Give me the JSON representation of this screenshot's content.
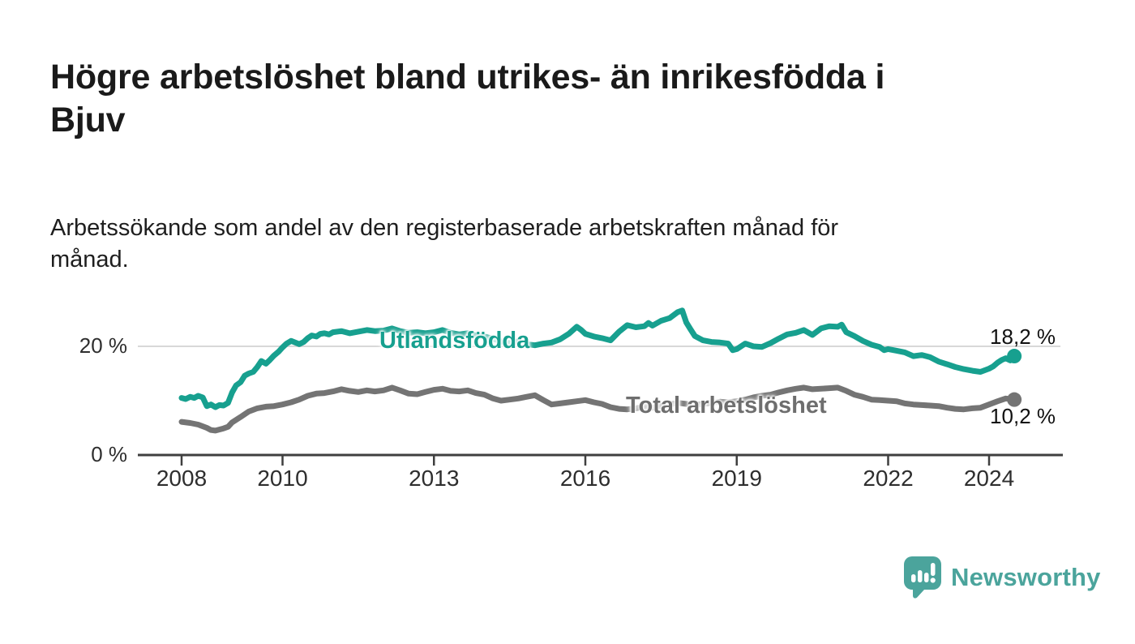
{
  "header": {
    "title": "Högre arbetslöshet bland utrikes- än inrikesfödda i\nBjuv",
    "subtitle": "Arbetssökande som andel av den registerbaserade arbetskraften månad för\nmånad."
  },
  "branding": {
    "name": "Newsworthy",
    "icon": "speech-bubble-bar-chart-icon",
    "color": "#4ba49c"
  },
  "chart_data": {
    "type": "line",
    "title": "Högre arbetslöshet bland utrikes- än inrikesfödda i Bjuv",
    "subtitle": "Arbetssökande som andel av den registerbaserade arbetskraften månad för månad.",
    "unit": "%",
    "grid": "horizontal-gridline-at-20-only",
    "legend_position": "labels-on-lines",
    "x_axis": {
      "range": [
        2008,
        2025.5
      ],
      "ticks": [
        {
          "label": "2008",
          "year": 2008
        },
        {
          "label": "2010",
          "year": 2010
        },
        {
          "label": "2013",
          "year": 2013
        },
        {
          "label": "2016",
          "year": 2016
        },
        {
          "label": "2019",
          "year": 2019
        },
        {
          "label": "2022",
          "year": 2022
        },
        {
          "label": "2024",
          "year": 2024
        }
      ]
    },
    "y_axis": {
      "range": [
        0,
        27
      ],
      "ticks": [
        {
          "label": "0 %",
          "value": 0
        },
        {
          "label": "20 %",
          "value": 20
        }
      ]
    },
    "series": [
      {
        "name": "Utlandsfödda",
        "color": "#17a08f",
        "end_value": 18.2,
        "end_label": "18,2 %",
        "points": [
          [
            2008.0,
            10.5
          ],
          [
            2008.08,
            10.3
          ],
          [
            2008.17,
            10.7
          ],
          [
            2008.25,
            10.5
          ],
          [
            2008.33,
            10.9
          ],
          [
            2008.42,
            10.6
          ],
          [
            2008.5,
            9.0
          ],
          [
            2008.58,
            9.3
          ],
          [
            2008.67,
            8.8
          ],
          [
            2008.75,
            9.2
          ],
          [
            2008.83,
            9.1
          ],
          [
            2008.92,
            9.6
          ],
          [
            2009.0,
            11.5
          ],
          [
            2009.08,
            12.8
          ],
          [
            2009.17,
            13.4
          ],
          [
            2009.25,
            14.6
          ],
          [
            2009.33,
            15.0
          ],
          [
            2009.42,
            15.3
          ],
          [
            2009.5,
            16.2
          ],
          [
            2009.58,
            17.3
          ],
          [
            2009.67,
            16.8
          ],
          [
            2009.75,
            17.5
          ],
          [
            2009.83,
            18.3
          ],
          [
            2009.92,
            19.0
          ],
          [
            2010.0,
            19.8
          ],
          [
            2010.08,
            20.5
          ],
          [
            2010.17,
            21.0
          ],
          [
            2010.25,
            20.7
          ],
          [
            2010.33,
            20.4
          ],
          [
            2010.42,
            20.8
          ],
          [
            2010.5,
            21.5
          ],
          [
            2010.58,
            22.0
          ],
          [
            2010.67,
            21.8
          ],
          [
            2010.75,
            22.3
          ],
          [
            2010.83,
            22.4
          ],
          [
            2010.92,
            22.2
          ],
          [
            2011.0,
            22.6
          ],
          [
            2011.17,
            22.8
          ],
          [
            2011.33,
            22.4
          ],
          [
            2011.5,
            22.7
          ],
          [
            2011.67,
            23.0
          ],
          [
            2011.83,
            22.8
          ],
          [
            2012.0,
            22.9
          ],
          [
            2012.17,
            23.3
          ],
          [
            2012.33,
            22.8
          ],
          [
            2012.5,
            22.5
          ],
          [
            2012.67,
            22.6
          ],
          [
            2012.83,
            22.4
          ],
          [
            2013.0,
            22.6
          ],
          [
            2013.17,
            23.0
          ],
          [
            2013.33,
            22.5
          ],
          [
            2013.5,
            22.2
          ],
          [
            2013.67,
            22.4
          ],
          [
            2013.83,
            22.0
          ],
          [
            2014.0,
            21.8
          ],
          [
            2014.17,
            21.4
          ],
          [
            2014.33,
            20.9
          ],
          [
            2014.5,
            20.6
          ],
          [
            2014.67,
            20.9
          ],
          [
            2014.83,
            20.4
          ],
          [
            2015.0,
            20.2
          ],
          [
            2015.17,
            20.5
          ],
          [
            2015.33,
            20.7
          ],
          [
            2015.5,
            21.3
          ],
          [
            2015.67,
            22.3
          ],
          [
            2015.83,
            23.6
          ],
          [
            2015.92,
            23.0
          ],
          [
            2016.0,
            22.3
          ],
          [
            2016.17,
            21.8
          ],
          [
            2016.33,
            21.5
          ],
          [
            2016.5,
            21.1
          ],
          [
            2016.67,
            22.7
          ],
          [
            2016.83,
            23.9
          ],
          [
            2017.0,
            23.5
          ],
          [
            2017.17,
            23.7
          ],
          [
            2017.25,
            24.3
          ],
          [
            2017.33,
            23.8
          ],
          [
            2017.5,
            24.7
          ],
          [
            2017.67,
            25.2
          ],
          [
            2017.83,
            26.3
          ],
          [
            2017.92,
            26.6
          ],
          [
            2018.0,
            24.4
          ],
          [
            2018.08,
            23.2
          ],
          [
            2018.17,
            21.9
          ],
          [
            2018.33,
            21.1
          ],
          [
            2018.5,
            20.8
          ],
          [
            2018.67,
            20.7
          ],
          [
            2018.83,
            20.5
          ],
          [
            2018.92,
            19.3
          ],
          [
            2019.0,
            19.5
          ],
          [
            2019.17,
            20.5
          ],
          [
            2019.33,
            20.0
          ],
          [
            2019.5,
            19.9
          ],
          [
            2019.67,
            20.6
          ],
          [
            2019.83,
            21.4
          ],
          [
            2020.0,
            22.2
          ],
          [
            2020.17,
            22.5
          ],
          [
            2020.33,
            23.0
          ],
          [
            2020.5,
            22.1
          ],
          [
            2020.67,
            23.3
          ],
          [
            2020.83,
            23.7
          ],
          [
            2021.0,
            23.6
          ],
          [
            2021.08,
            24.0
          ],
          [
            2021.17,
            22.6
          ],
          [
            2021.33,
            21.9
          ],
          [
            2021.5,
            21.0
          ],
          [
            2021.67,
            20.3
          ],
          [
            2021.83,
            19.9
          ],
          [
            2021.92,
            19.3
          ],
          [
            2022.0,
            19.5
          ],
          [
            2022.17,
            19.2
          ],
          [
            2022.33,
            18.9
          ],
          [
            2022.5,
            18.2
          ],
          [
            2022.67,
            18.4
          ],
          [
            2022.83,
            18.0
          ],
          [
            2023.0,
            17.2
          ],
          [
            2023.17,
            16.7
          ],
          [
            2023.33,
            16.2
          ],
          [
            2023.5,
            15.8
          ],
          [
            2023.67,
            15.5
          ],
          [
            2023.83,
            15.3
          ],
          [
            2024.0,
            15.9
          ],
          [
            2024.08,
            16.3
          ],
          [
            2024.17,
            17.0
          ],
          [
            2024.25,
            17.5
          ],
          [
            2024.33,
            17.8
          ],
          [
            2024.42,
            17.4
          ],
          [
            2024.5,
            18.2
          ]
        ]
      },
      {
        "name": "Total arbetslöshet",
        "color": "#747474",
        "end_value": 10.2,
        "end_label": "10,2 %",
        "points": [
          [
            2008.0,
            6.1
          ],
          [
            2008.17,
            5.9
          ],
          [
            2008.33,
            5.6
          ],
          [
            2008.5,
            5.0
          ],
          [
            2008.58,
            4.6
          ],
          [
            2008.67,
            4.5
          ],
          [
            2008.83,
            4.9
          ],
          [
            2008.92,
            5.2
          ],
          [
            2009.0,
            6.0
          ],
          [
            2009.17,
            7.0
          ],
          [
            2009.33,
            8.0
          ],
          [
            2009.5,
            8.6
          ],
          [
            2009.67,
            8.9
          ],
          [
            2009.83,
            9.0
          ],
          [
            2010.0,
            9.3
          ],
          [
            2010.17,
            9.7
          ],
          [
            2010.33,
            10.2
          ],
          [
            2010.5,
            10.9
          ],
          [
            2010.67,
            11.3
          ],
          [
            2010.83,
            11.4
          ],
          [
            2011.0,
            11.7
          ],
          [
            2011.17,
            12.1
          ],
          [
            2011.33,
            11.8
          ],
          [
            2011.5,
            11.6
          ],
          [
            2011.67,
            11.9
          ],
          [
            2011.83,
            11.7
          ],
          [
            2012.0,
            11.9
          ],
          [
            2012.17,
            12.4
          ],
          [
            2012.33,
            11.9
          ],
          [
            2012.5,
            11.3
          ],
          [
            2012.67,
            11.2
          ],
          [
            2012.83,
            11.6
          ],
          [
            2013.0,
            12.0
          ],
          [
            2013.17,
            12.2
          ],
          [
            2013.33,
            11.8
          ],
          [
            2013.5,
            11.7
          ],
          [
            2013.67,
            11.9
          ],
          [
            2013.83,
            11.4
          ],
          [
            2014.0,
            11.1
          ],
          [
            2014.17,
            10.4
          ],
          [
            2014.33,
            10.0
          ],
          [
            2014.5,
            10.2
          ],
          [
            2014.67,
            10.4
          ],
          [
            2014.83,
            10.7
          ],
          [
            2015.0,
            11.0
          ],
          [
            2015.17,
            10.1
          ],
          [
            2015.33,
            9.3
          ],
          [
            2015.5,
            9.5
          ],
          [
            2015.67,
            9.7
          ],
          [
            2015.83,
            9.9
          ],
          [
            2016.0,
            10.1
          ],
          [
            2016.17,
            9.7
          ],
          [
            2016.33,
            9.4
          ],
          [
            2016.5,
            8.8
          ],
          [
            2016.67,
            8.5
          ],
          [
            2016.83,
            8.4
          ],
          [
            2017.0,
            8.6
          ],
          [
            2017.17,
            8.9
          ],
          [
            2017.33,
            8.7
          ],
          [
            2017.5,
            9.0
          ],
          [
            2017.67,
            9.3
          ],
          [
            2017.83,
            9.6
          ],
          [
            2018.0,
            9.4
          ],
          [
            2018.17,
            9.2
          ],
          [
            2018.33,
            9.4
          ],
          [
            2018.5,
            9.6
          ],
          [
            2018.67,
            9.8
          ],
          [
            2018.83,
            9.7
          ],
          [
            2019.0,
            9.9
          ],
          [
            2019.17,
            10.2
          ],
          [
            2019.33,
            10.6
          ],
          [
            2019.5,
            10.9
          ],
          [
            2019.67,
            11.1
          ],
          [
            2019.83,
            11.5
          ],
          [
            2020.0,
            11.9
          ],
          [
            2020.17,
            12.2
          ],
          [
            2020.33,
            12.4
          ],
          [
            2020.5,
            12.1
          ],
          [
            2020.67,
            12.2
          ],
          [
            2020.83,
            12.3
          ],
          [
            2021.0,
            12.4
          ],
          [
            2021.17,
            11.8
          ],
          [
            2021.33,
            11.1
          ],
          [
            2021.5,
            10.7
          ],
          [
            2021.67,
            10.2
          ],
          [
            2021.83,
            10.1
          ],
          [
            2022.0,
            10.0
          ],
          [
            2022.17,
            9.9
          ],
          [
            2022.33,
            9.5
          ],
          [
            2022.5,
            9.3
          ],
          [
            2022.67,
            9.2
          ],
          [
            2022.83,
            9.1
          ],
          [
            2023.0,
            9.0
          ],
          [
            2023.17,
            8.7
          ],
          [
            2023.33,
            8.5
          ],
          [
            2023.5,
            8.4
          ],
          [
            2023.67,
            8.6
          ],
          [
            2023.83,
            8.7
          ],
          [
            2024.0,
            9.3
          ],
          [
            2024.17,
            9.9
          ],
          [
            2024.33,
            10.4
          ],
          [
            2024.42,
            10.3
          ],
          [
            2024.5,
            10.2
          ]
        ]
      }
    ]
  }
}
